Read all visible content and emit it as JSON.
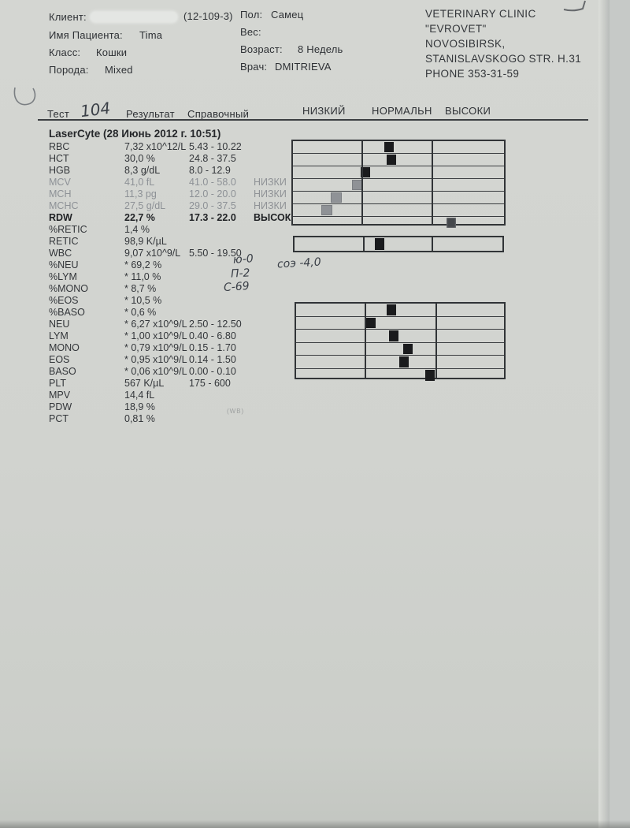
{
  "header": {
    "client_label": "Клиент:",
    "client_id": "(12-109-3)",
    "patient_label": "Имя Пациента:",
    "patient_name": "Tima",
    "class_label": "Класс:",
    "class_value": "Кошки",
    "breed_label": "Порода:",
    "breed_value": "Mixed",
    "sex_label": "Пол:",
    "sex_value": "Самец",
    "weight_label": "Вес:",
    "weight_value": "",
    "age_label": "Возраст:",
    "age_value": "8 Недель",
    "doctor_label": "Врач:",
    "doctor_value": "DMITRIEVA",
    "clinic_lines": {
      "0": "VETERINARY CLINIC",
      "1": "\"EVROVET\"",
      "2": "NOVOSIBIRSK,",
      "3": "STANISLAVSKOGO STR.  H.31",
      "4": "PHONE 353-31-59"
    }
  },
  "table": {
    "col_test": "Тест",
    "col_result": "Результат",
    "col_reference": "Справочный",
    "col_low": "НИЗКИЙ",
    "col_normal": "НОРМАЛЬН",
    "col_high": "ВЫСОКИ",
    "section_title": "LaserCyte (28 Июнь 2012 г. 10:51)",
    "rows": [
      {
        "name": "RBC",
        "result": "7,32 x10^12/L",
        "range": "5.43 - 10.22",
        "flag": ""
      },
      {
        "name": "HCT",
        "result": "30,0 %",
        "range": "24.8 - 37.5",
        "flag": ""
      },
      {
        "name": "HGB",
        "result": "8,3 g/dL",
        "range": "8.0 - 12.9",
        "flag": ""
      },
      {
        "name": "MCV",
        "result": "41,0 fL",
        "range": "41.0 - 58.0",
        "flag": "НИЗКИ"
      },
      {
        "name": "MCH",
        "result": "11,3 pg",
        "range": "12.0 - 20.0",
        "flag": "НИЗКИ"
      },
      {
        "name": "MCHC",
        "result": "27,5 g/dL",
        "range": "29.0 - 37.5",
        "flag": "НИЗКИ"
      },
      {
        "name": "RDW",
        "result": "22,7 %",
        "range": "17.3 - 22.0",
        "flag": "ВЫСОК"
      },
      {
        "name": "%RETIC",
        "result": "1,4 %",
        "range": "",
        "flag": ""
      },
      {
        "name": "RETIC",
        "result": "98,9 K/µL",
        "range": "",
        "flag": ""
      },
      {
        "name": "WBC",
        "result": "9,07 x10^9/L",
        "range": "5.50 - 19.50",
        "flag": ""
      },
      {
        "name": "%NEU",
        "result": "* 69,2 %",
        "range": "",
        "flag": ""
      },
      {
        "name": "%LYM",
        "result": "* 11,0 %",
        "range": "",
        "flag": ""
      },
      {
        "name": "%MONO",
        "result": "* 8,7 %",
        "range": "",
        "flag": ""
      },
      {
        "name": "%EOS",
        "result": "* 10,5 %",
        "range": "",
        "flag": ""
      },
      {
        "name": "%BASO",
        "result": "* 0,6 %",
        "range": "",
        "flag": ""
      },
      {
        "name": "NEU",
        "result": "* 6,27 x10^9/L",
        "range": "2.50 - 12.50",
        "flag": ""
      },
      {
        "name": "LYM",
        "result": "* 1,00 x10^9/L",
        "range": "0.40 - 6.80",
        "flag": ""
      },
      {
        "name": "MONO",
        "result": "* 0,79 x10^9/L",
        "range": "0.15 - 1.70",
        "flag": ""
      },
      {
        "name": "EOS",
        "result": "* 0,95 x10^9/L",
        "range": "0.14 - 1.50",
        "flag": ""
      },
      {
        "name": "BASO",
        "result": "* 0,06 x10^9/L",
        "range": "0.00 - 0.10",
        "flag": ""
      },
      {
        "name": "PLT",
        "result": "567 K/µL",
        "range": "175 - 600",
        "flag": ""
      },
      {
        "name": "MPV",
        "result": "14,4 fL",
        "range": "",
        "flag": ""
      },
      {
        "name": "PDW",
        "result": "18,9 %",
        "range": "",
        "flag": ""
      },
      {
        "name": "PCT",
        "result": "0,81 %",
        "range": "",
        "flag": ""
      }
    ]
  },
  "handwriting": {
    "test_number": "104",
    "note_neu": "ю-0",
    "note_lym": "П-2",
    "note_mono": "С-69",
    "note_soe": "соэ -4,0"
  },
  "footer_faint": "(WB)",
  "chart_data": {
    "type": "range-indicator",
    "bands": {
      "low": "НИЗКИЙ",
      "normal": "НОРМАЛЬН",
      "high": "ВЫСОКИ"
    },
    "band_splits": [
      0.33,
      0.66
    ],
    "marker_colors": {
      "dark": "#1a1b1d",
      "gray": "#8f9296",
      "mid": "#44474b"
    },
    "groups": [
      {
        "tests": [
          {
            "test": "RBC",
            "value": 7.32,
            "low": 5.43,
            "high": 10.22,
            "pos": 0.455,
            "tone": "dark"
          },
          {
            "test": "HCT",
            "value": 30.0,
            "low": 24.8,
            "high": 37.5,
            "pos": 0.465,
            "tone": "dark"
          },
          {
            "test": "HGB",
            "value": 8.3,
            "low": 8.0,
            "high": 12.9,
            "pos": 0.345,
            "tone": "dark"
          },
          {
            "test": "MCV",
            "value": 41.0,
            "low": 41.0,
            "high": 58.0,
            "pos": 0.305,
            "tone": "gray"
          },
          {
            "test": "MCH",
            "value": 11.3,
            "low": 12.0,
            "high": 20.0,
            "pos": 0.205,
            "tone": "gray"
          },
          {
            "test": "MCHC",
            "value": 27.5,
            "low": 29.0,
            "high": 37.5,
            "pos": 0.16,
            "tone": "gray"
          },
          {
            "test": "RDW",
            "value": 22.7,
            "low": 17.3,
            "high": 22.0,
            "pos": 0.75,
            "tone": "mid"
          }
        ]
      },
      {
        "tests": [
          {
            "test": "WBC",
            "value": 9.07,
            "low": 5.5,
            "high": 19.5,
            "pos": 0.41,
            "tone": "dark"
          }
        ]
      },
      {
        "tests": [
          {
            "test": "NEU",
            "value": 6.27,
            "low": 2.5,
            "high": 12.5,
            "pos": 0.46,
            "tone": "dark"
          },
          {
            "test": "LYM",
            "value": 1.0,
            "low": 0.4,
            "high": 6.8,
            "pos": 0.358,
            "tone": "dark"
          },
          {
            "test": "MONO",
            "value": 0.79,
            "low": 0.15,
            "high": 1.7,
            "pos": 0.468,
            "tone": "dark"
          },
          {
            "test": "EOS",
            "value": 0.95,
            "low": 0.14,
            "high": 1.5,
            "pos": 0.538,
            "tone": "dark"
          },
          {
            "test": "BASO",
            "value": 0.06,
            "low": 0.0,
            "high": 0.1,
            "pos": 0.52,
            "tone": "dark"
          },
          {
            "test": "PLT",
            "value": 567,
            "low": 175,
            "high": 600,
            "pos": 0.645,
            "tone": "dark"
          }
        ]
      }
    ]
  }
}
